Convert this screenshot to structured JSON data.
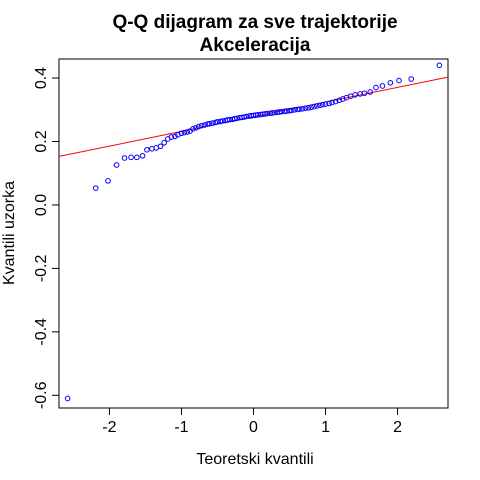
{
  "chart_data": {
    "type": "scatter",
    "title": "Q-Q dijagram za sve trajektorije",
    "subtitle": "Akceleracija",
    "xlabel": "Teoretski kvantili",
    "ylabel": "Kvantili uzorka",
    "xlim": [
      -2.7,
      2.7
    ],
    "ylim": [
      -0.64,
      0.46
    ],
    "x_ticks": [
      -2,
      -1,
      0,
      1,
      2
    ],
    "x_tick_labels": [
      "-2",
      "-1",
      "0",
      "1",
      "2"
    ],
    "y_ticks": [
      -0.6,
      -0.4,
      -0.2,
      0.0,
      0.2,
      0.4
    ],
    "y_tick_labels": [
      "-0.6",
      "-0.4",
      "-0.2",
      "0.0",
      "0.2",
      "0.4"
    ],
    "grid": false,
    "point_color": "#0000ff",
    "line_color": "#ff0000",
    "reference_line": {
      "x": [
        -2.7,
        2.7
      ],
      "y": [
        0.153,
        0.403
      ]
    },
    "points": {
      "x": [
        -2.58,
        -2.19,
        -2.02,
        -1.9,
        -1.79,
        -1.7,
        -1.62,
        -1.54,
        -1.48,
        -1.41,
        -1.35,
        -1.29,
        -1.24,
        -1.19,
        -1.14,
        -1.09,
        -1.05,
        -1.0,
        -0.96,
        -0.92,
        -0.88,
        -0.84,
        -0.8,
        -0.76,
        -0.72,
        -0.68,
        -0.64,
        -0.61,
        -0.57,
        -0.53,
        -0.5,
        -0.46,
        -0.43,
        -0.39,
        -0.36,
        -0.33,
        -0.29,
        -0.26,
        -0.23,
        -0.19,
        -0.16,
        -0.13,
        -0.1,
        -0.06,
        -0.03,
        0.0,
        0.03,
        0.06,
        0.1,
        0.13,
        0.16,
        0.19,
        0.23,
        0.26,
        0.29,
        0.33,
        0.36,
        0.39,
        0.43,
        0.46,
        0.5,
        0.53,
        0.57,
        0.61,
        0.64,
        0.68,
        0.72,
        0.76,
        0.8,
        0.84,
        0.88,
        0.92,
        0.96,
        1.0,
        1.05,
        1.09,
        1.14,
        1.19,
        1.24,
        1.29,
        1.35,
        1.41,
        1.48,
        1.54,
        1.62,
        1.7,
        1.79,
        1.9,
        2.02,
        2.19,
        2.58
      ],
      "y": [
        -0.61,
        0.053,
        0.076,
        0.126,
        0.148,
        0.15,
        0.15,
        0.155,
        0.174,
        0.177,
        0.18,
        0.185,
        0.196,
        0.208,
        0.214,
        0.216,
        0.221,
        0.226,
        0.228,
        0.23,
        0.233,
        0.24,
        0.243,
        0.247,
        0.25,
        0.252,
        0.255,
        0.256,
        0.258,
        0.26,
        0.262,
        0.263,
        0.265,
        0.266,
        0.268,
        0.269,
        0.27,
        0.272,
        0.273,
        0.275,
        0.276,
        0.277,
        0.279,
        0.28,
        0.281,
        0.282,
        0.283,
        0.284,
        0.285,
        0.286,
        0.287,
        0.288,
        0.289,
        0.29,
        0.291,
        0.292,
        0.293,
        0.294,
        0.295,
        0.296,
        0.297,
        0.298,
        0.3,
        0.301,
        0.302,
        0.303,
        0.305,
        0.306,
        0.308,
        0.31,
        0.312,
        0.314,
        0.316,
        0.318,
        0.32,
        0.323,
        0.326,
        0.33,
        0.334,
        0.338,
        0.343,
        0.347,
        0.35,
        0.352,
        0.356,
        0.37,
        0.375,
        0.385,
        0.392,
        0.397,
        0.44
      ]
    }
  }
}
